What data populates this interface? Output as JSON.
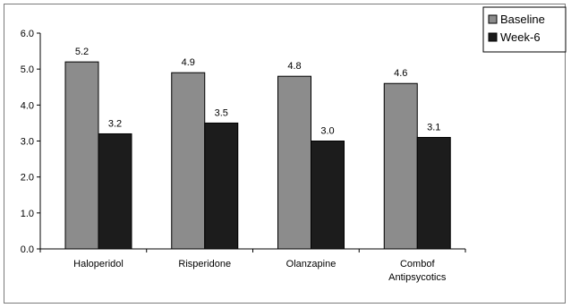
{
  "chart_data": {
    "type": "bar",
    "categories": [
      [
        "Haloperidol"
      ],
      [
        "Risperidone"
      ],
      [
        "Olanzapine"
      ],
      [
        "Combof",
        "Antipsycotics"
      ]
    ],
    "series": [
      {
        "name": "Baseline",
        "values": [
          5.2,
          4.9,
          4.8,
          4.6
        ],
        "labels": [
          "5.2",
          "4.9",
          "4.8",
          "4.6"
        ],
        "color": "#8c8c8c"
      },
      {
        "name": "Week-6",
        "values": [
          3.2,
          3.5,
          3.0,
          3.1
        ],
        "labels": [
          "3.2",
          "3.5",
          "3.0",
          "3.1"
        ],
        "color": "#1c1c1c"
      }
    ],
    "ylim": [
      0,
      6
    ],
    "yticks": [
      "0.0",
      "1.0",
      "2.0",
      "3.0",
      "4.0",
      "5.0",
      "6.0"
    ],
    "grid": false,
    "legend_position": "top-right"
  }
}
